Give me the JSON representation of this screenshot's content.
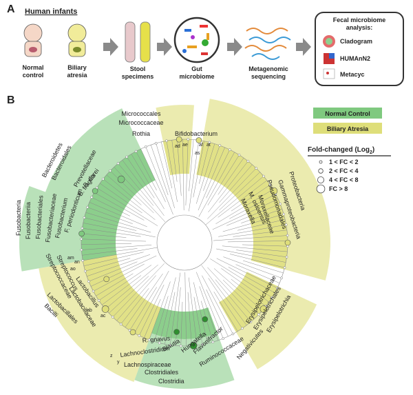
{
  "panel_a": {
    "label": "A",
    "infants_title": "Human infants",
    "groups": [
      [
        "Normal",
        "control"
      ],
      [
        "Biliary",
        "atresia"
      ]
    ],
    "steps": [
      [
        "Stool",
        "specimens"
      ],
      [
        "Gut",
        "microbiome"
      ],
      [
        "Metagenomic",
        "sequencing"
      ]
    ],
    "analysis": {
      "title": [
        "Fecal microbiome",
        "analysis:"
      ],
      "items": [
        "Cladogram",
        "HUMAnN2",
        "Metacyc"
      ]
    }
  },
  "panel_b": {
    "label": "B",
    "legend": [
      {
        "name": "Normal Control",
        "color": "#7fc97f"
      },
      {
        "name": "Biliary Atresia",
        "color": "#dede7a"
      }
    ],
    "fold_change": {
      "title": "Fold-changed (Log",
      "sub": "2",
      "close": ")",
      "items": [
        "1 < FC < 2",
        "2 < FC < 4",
        "4 < FC < 8",
        "FC > 8"
      ]
    },
    "clades": [
      "Micrococcales",
      "Micrococcaceae",
      "Rothia",
      "Bifidobacterium",
      "Bacteroidetes",
      "Bacteroidales",
      "Prevotellaceae",
      "B. fragilis",
      "B. dorei",
      "Fusobacteria",
      "Fusobacteriia",
      "Fusobacteriales",
      "Fusobacteriaceae",
      "Fusobacterium",
      "F. periodonticum",
      "Streptococcaceae",
      "Streptococcus",
      "Lactobacillaceae",
      "Lactobacillus",
      "Lactobacillales",
      "Bacilli",
      "Lachnoclostridium",
      "Lachnospiraceae",
      "Clostridiales",
      "Clostridia",
      "R. gnavus",
      "Blautia",
      "Hungatella",
      "Flavonifractor",
      "Ruminococcaceae",
      "Erysipelotrichaceae",
      "Erysipelotrichales",
      "Erysipelotrichia",
      "Negativicutes",
      "Proteobacteria",
      "Gammaproteobacteria",
      "Pseudomonadales",
      "Moraxellaceae",
      "M. osloensis",
      "Moraxella"
    ],
    "node_letters": [
      "ad",
      "ae",
      "af",
      "at",
      "as",
      "am",
      "an",
      "ao",
      "ab",
      "ac",
      "z",
      "y"
    ]
  }
}
